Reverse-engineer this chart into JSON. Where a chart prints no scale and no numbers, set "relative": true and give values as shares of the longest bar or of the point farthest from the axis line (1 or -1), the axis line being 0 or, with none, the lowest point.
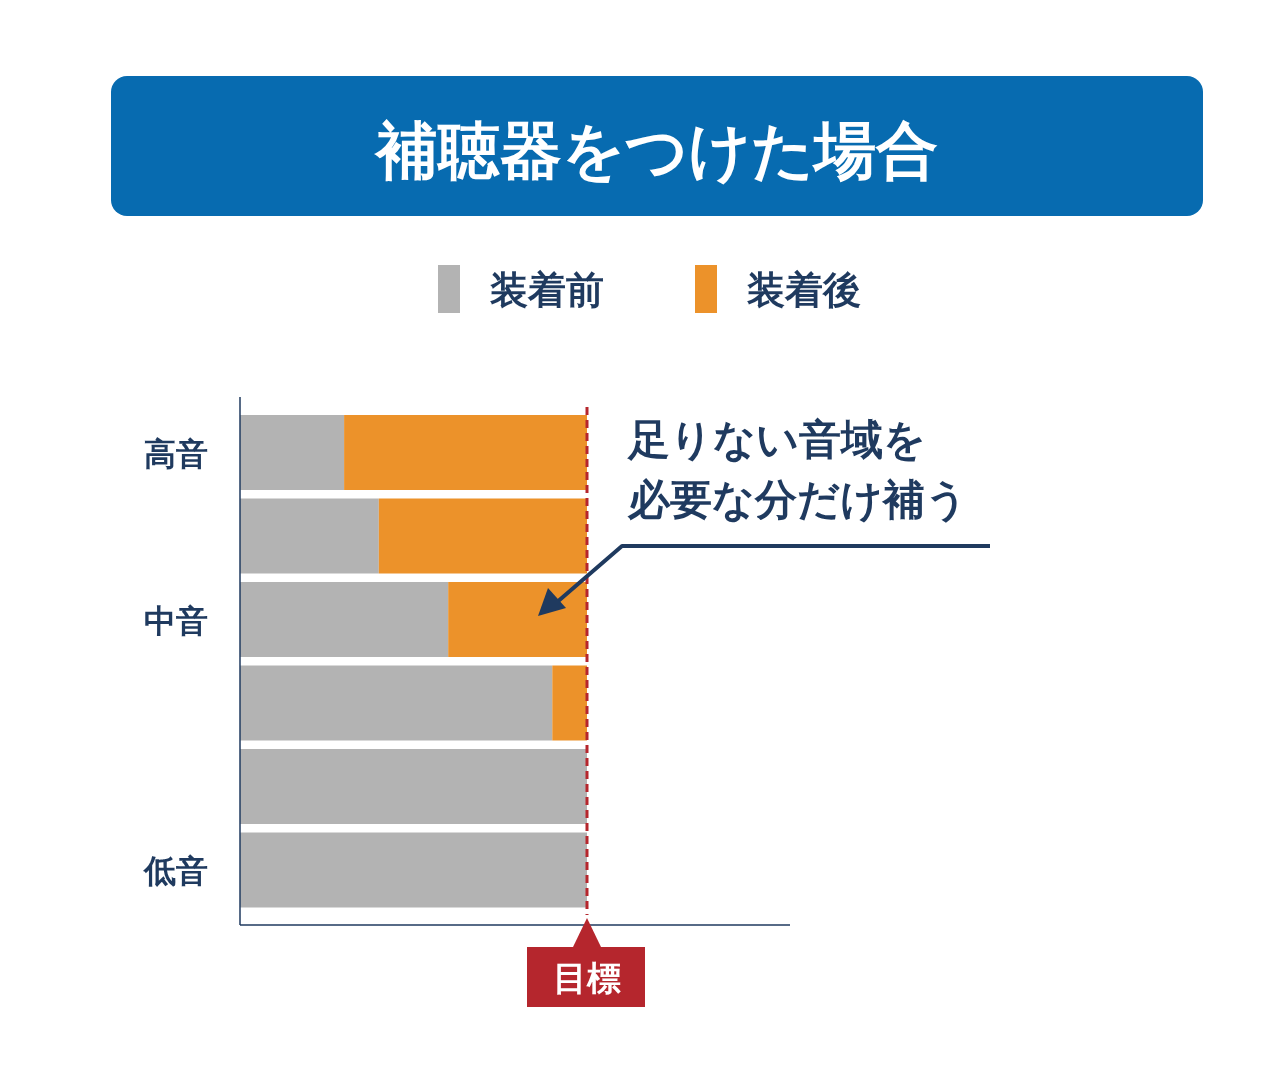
{
  "chart_data": {
    "type": "bar",
    "orientation": "horizontal",
    "stacked": true,
    "relative": true,
    "title": "補聴器をつけた場合",
    "categories": [
      "高音",
      null,
      "中音",
      null,
      null,
      "低音"
    ],
    "series": [
      {
        "name": "装着前",
        "color": "#b3b3b3",
        "values": [
          0.3,
          0.4,
          0.6,
          0.9,
          1,
          1
        ]
      },
      {
        "name": "装着後",
        "color": "#ec922a",
        "values": [
          0.7,
          0.6,
          0.4,
          0.1,
          0,
          0
        ]
      }
    ],
    "legend": "top",
    "ref_lines": [
      {
        "axis": "x",
        "value": 1,
        "label": "目標",
        "color": "#b5262d",
        "line_style": "dashed"
      }
    ],
    "annotations": [
      "足りない音域を必要な分だけ補う"
    ]
  }
}
